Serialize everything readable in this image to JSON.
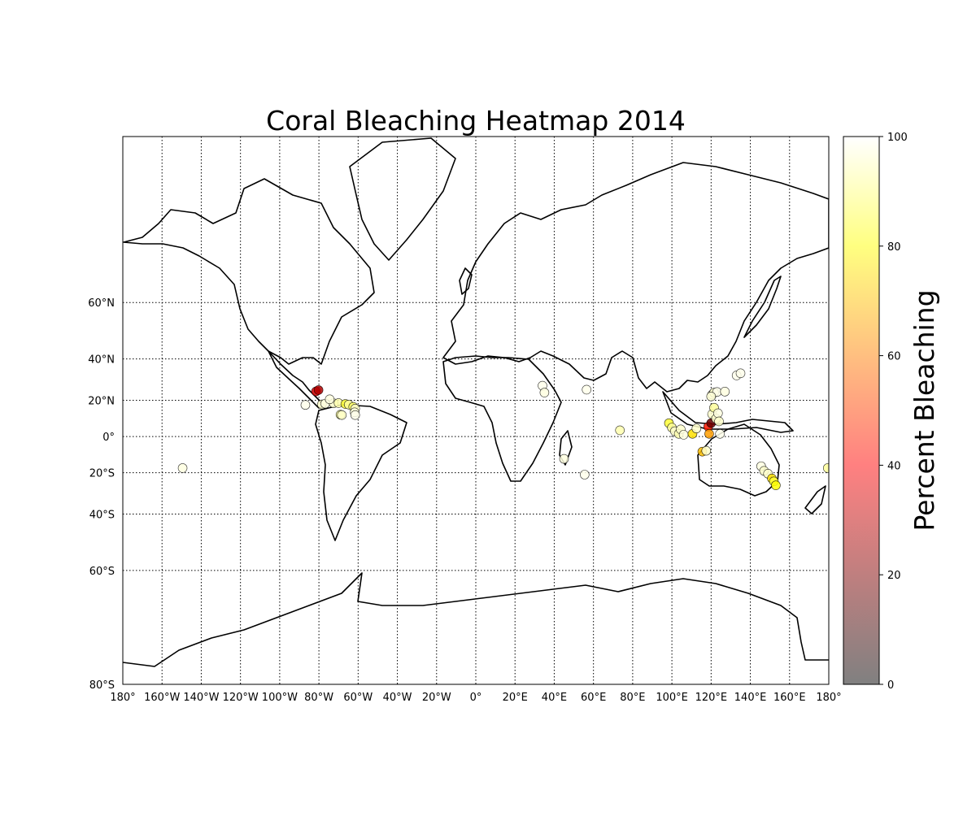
{
  "figure": {
    "title": "Coral Bleaching Heatmap 2014",
    "colorbar_label": "Percent Bleaching"
  },
  "map": {
    "projection": "mercator",
    "lon_range": [
      -180,
      180
    ],
    "lat_range": [
      -80,
      84
    ],
    "meridians": [
      -180,
      -160,
      -140,
      -120,
      -100,
      -80,
      -60,
      -40,
      -20,
      0,
      20,
      40,
      60,
      80,
      100,
      120,
      140,
      160,
      180
    ],
    "parallels": [
      60,
      40,
      20,
      0,
      -20,
      -40,
      -60,
      -80
    ],
    "lon_labels": [
      "180°",
      "160°W",
      "140°W",
      "120°W",
      "100°W",
      "80°W",
      "60°W",
      "40°W",
      "20°W",
      "0°",
      "20°E",
      "40°E",
      "60°E",
      "80°E",
      "100°E",
      "120°E",
      "140°E",
      "160°E",
      "180°"
    ],
    "lat_labels": [
      "60°N",
      "40°N",
      "20°N",
      "0°",
      "20°S",
      "40°S",
      "60°S",
      "80°S"
    ],
    "coastline_color": "#000000",
    "gridline_style": "dotted"
  },
  "colorbar": {
    "min": 0,
    "max": 100,
    "ticks": [
      "0",
      "20",
      "40",
      "60",
      "80",
      "100"
    ],
    "tick_values": [
      0,
      20,
      40,
      60,
      80,
      100
    ],
    "colormap": "hot_r",
    "alpha": 0.5
  },
  "chart_data": {
    "type": "scatter",
    "title": "Coral Bleaching Heatmap 2014",
    "colorbar_label": "Percent Bleaching",
    "points": [
      {
        "lon": -81.5,
        "lat": 24.6,
        "bleach": 70
      },
      {
        "lon": -80.2,
        "lat": 25.3,
        "bleach": 75
      },
      {
        "lon": -86.9,
        "lat": 17.5,
        "bleach": 2
      },
      {
        "lon": -78.5,
        "lat": 17.8,
        "bleach": 5
      },
      {
        "lon": -76.8,
        "lat": 18.2,
        "bleach": 3
      },
      {
        "lon": -72.5,
        "lat": 18.4,
        "bleach": 5
      },
      {
        "lon": -70.0,
        "lat": 18.5,
        "bleach": 8
      },
      {
        "lon": -66.5,
        "lat": 18.0,
        "bleach": 20
      },
      {
        "lon": -64.8,
        "lat": 17.7,
        "bleach": 10
      },
      {
        "lon": -62.5,
        "lat": 16.5,
        "bleach": 15
      },
      {
        "lon": -61.5,
        "lat": 15.5,
        "bleach": 5
      },
      {
        "lon": -61.8,
        "lat": 13.5,
        "bleach": 3
      },
      {
        "lon": -61.5,
        "lat": 12.0,
        "bleach": 2
      },
      {
        "lon": -69.0,
        "lat": 12.2,
        "bleach": 10
      },
      {
        "lon": -68.3,
        "lat": 12.0,
        "bleach": 5
      },
      {
        "lon": -74.5,
        "lat": 20.5,
        "bleach": 3
      },
      {
        "lon": -149.5,
        "lat": -17.5,
        "bleach": 3
      },
      {
        "lon": 34.0,
        "lat": 27.5,
        "bleach": 2
      },
      {
        "lon": 35.0,
        "lat": 24.0,
        "bleach": 3
      },
      {
        "lon": 56.5,
        "lat": 25.5,
        "bleach": 2
      },
      {
        "lon": 73.5,
        "lat": 3.5,
        "bleach": 8
      },
      {
        "lon": 45.0,
        "lat": -12.5,
        "bleach": 3
      },
      {
        "lon": 55.5,
        "lat": -21.0,
        "bleach": 2
      },
      {
        "lon": 98.5,
        "lat": 7.5,
        "bleach": 20
      },
      {
        "lon": 100.0,
        "lat": 5.0,
        "bleach": 10
      },
      {
        "lon": 101.5,
        "lat": 3.0,
        "bleach": 5
      },
      {
        "lon": 103.5,
        "lat": 1.5,
        "bleach": 8
      },
      {
        "lon": 104.5,
        "lat": 4.0,
        "bleach": 5
      },
      {
        "lon": 106.0,
        "lat": 1.0,
        "bleach": 3
      },
      {
        "lon": 110.5,
        "lat": 1.5,
        "bleach": 30
      },
      {
        "lon": 112.5,
        "lat": 4.5,
        "bleach": 5
      },
      {
        "lon": 115.5,
        "lat": -8.5,
        "bleach": 35
      },
      {
        "lon": 117.5,
        "lat": -8.0,
        "bleach": 5
      },
      {
        "lon": 118.5,
        "lat": 5.5,
        "bleach": 60
      },
      {
        "lon": 119.0,
        "lat": 1.5,
        "bleach": 40
      },
      {
        "lon": 120.0,
        "lat": 7.5,
        "bleach": 85
      },
      {
        "lon": 120.5,
        "lat": 12.5,
        "bleach": 5
      },
      {
        "lon": 121.5,
        "lat": 16.0,
        "bleach": 10
      },
      {
        "lon": 122.5,
        "lat": 10.0,
        "bleach": 5
      },
      {
        "lon": 123.5,
        "lat": 13.0,
        "bleach": 3
      },
      {
        "lon": 124.0,
        "lat": 8.5,
        "bleach": 5
      },
      {
        "lon": 124.5,
        "lat": 1.5,
        "bleach": 2
      },
      {
        "lon": 120.5,
        "lat": 23.0,
        "bleach": 3
      },
      {
        "lon": 121.5,
        "lat": 24.0,
        "bleach": 5
      },
      {
        "lon": 123.0,
        "lat": 24.3,
        "bleach": 2
      },
      {
        "lon": 127.0,
        "lat": 24.5,
        "bleach": 3
      },
      {
        "lon": 120.0,
        "lat": 22.0,
        "bleach": 4
      },
      {
        "lon": 133.0,
        "lat": 32.5,
        "bleach": 2
      },
      {
        "lon": 135.0,
        "lat": 33.5,
        "bleach": 2
      },
      {
        "lon": 145.5,
        "lat": -16.5,
        "bleach": 3
      },
      {
        "lon": 147.0,
        "lat": -19.0,
        "bleach": 5
      },
      {
        "lon": 149.0,
        "lat": -20.5,
        "bleach": 5
      },
      {
        "lon": 151.0,
        "lat": -23.0,
        "bleach": 30
      },
      {
        "lon": 152.0,
        "lat": -24.5,
        "bleach": 20
      },
      {
        "lon": 153.0,
        "lat": -26.5,
        "bleach": 25
      },
      {
        "lon": 179.5,
        "lat": -17.5,
        "bleach": 10
      }
    ]
  }
}
